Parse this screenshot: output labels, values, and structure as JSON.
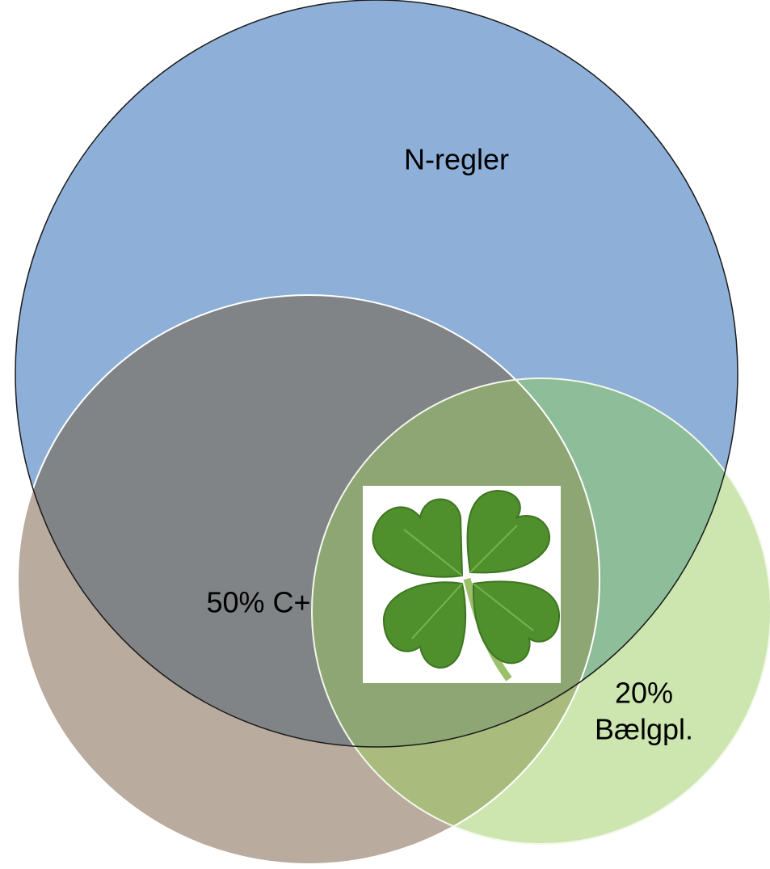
{
  "circles": [
    {
      "label": [
        "N-regler"
      ]
    },
    {
      "label": [
        "50% C+"
      ]
    },
    {
      "label": [
        "20%",
        "Bælgpl."
      ]
    }
  ]
}
